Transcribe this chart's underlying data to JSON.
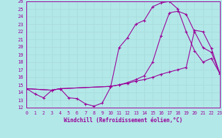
{
  "xlabel": "Windchill (Refroidissement éolien,°C)",
  "bg_color": "#b2e8e8",
  "grid_color": "#cceeee",
  "line_color": "#990099",
  "xmin": 0,
  "xmax": 23,
  "ymin": 12,
  "ymax": 26,
  "line1_x": [
    0,
    1,
    2,
    3,
    4,
    5,
    6,
    7,
    8,
    9,
    10,
    11,
    12,
    13,
    14,
    15,
    16,
    17,
    18,
    19,
    20,
    21,
    22,
    23
  ],
  "line1_y": [
    14.5,
    13.8,
    13.3,
    14.3,
    14.5,
    13.3,
    13.2,
    12.5,
    12.2,
    12.6,
    14.7,
    19.9,
    21.2,
    23.0,
    23.5,
    25.3,
    25.8,
    26.0,
    25.0,
    22.0,
    19.5,
    18.0,
    18.5,
    16.5
  ],
  "line2_x": [
    0,
    3,
    4,
    10,
    11,
    12,
    13,
    14,
    15,
    16,
    17,
    18,
    19,
    20,
    21,
    22,
    23
  ],
  "line2_y": [
    14.5,
    14.3,
    14.5,
    14.8,
    15.0,
    15.2,
    15.5,
    15.7,
    16.0,
    16.4,
    16.7,
    17.0,
    17.3,
    22.2,
    22.0,
    19.8,
    16.5
  ],
  "line3_x": [
    0,
    3,
    4,
    10,
    11,
    12,
    13,
    14,
    15,
    16,
    17,
    18,
    19,
    20,
    21,
    22,
    23
  ],
  "line3_y": [
    14.5,
    14.3,
    14.5,
    14.8,
    15.0,
    15.3,
    15.7,
    16.2,
    18.0,
    21.5,
    24.5,
    24.7,
    24.3,
    22.0,
    19.9,
    19.3,
    16.5
  ]
}
